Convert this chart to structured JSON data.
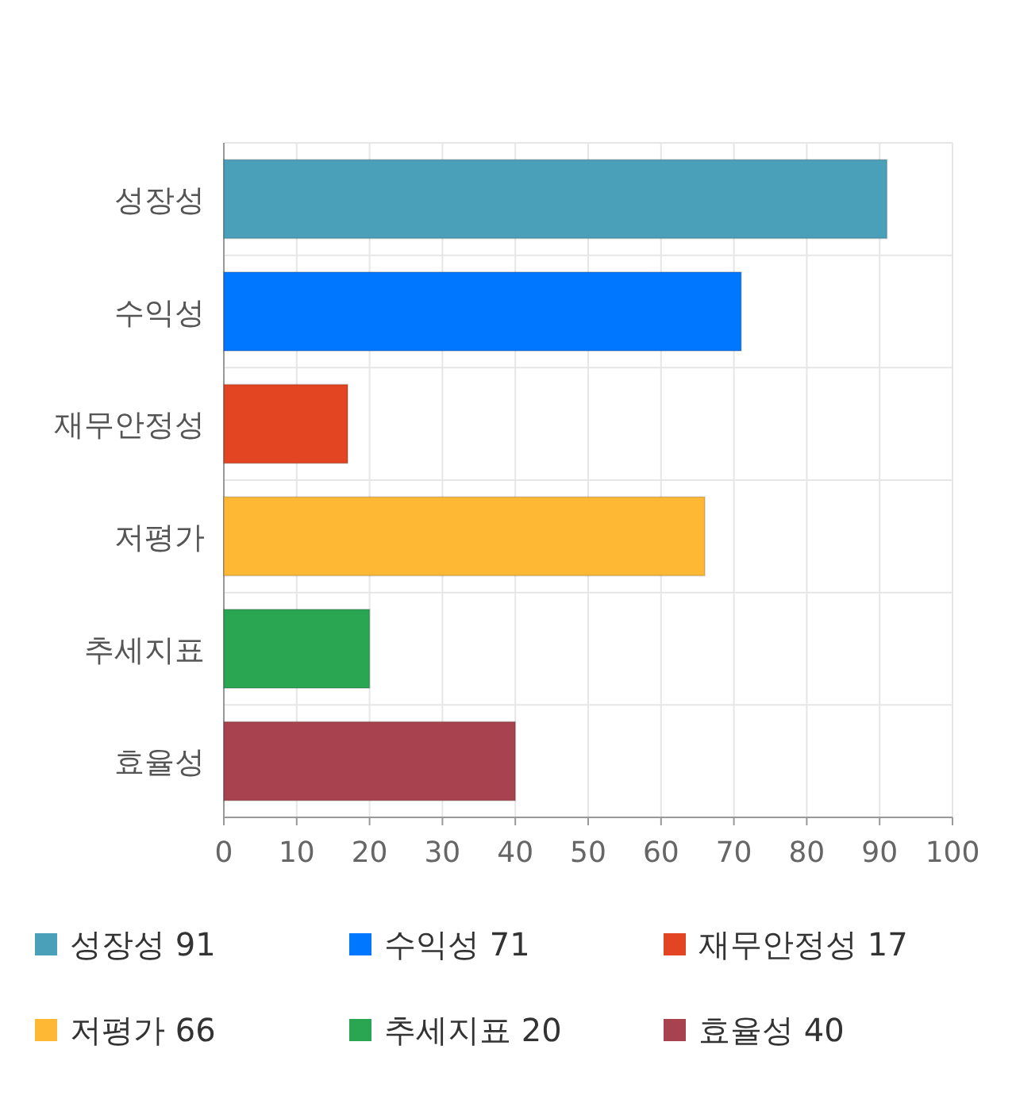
{
  "chart_data": {
    "type": "bar",
    "orientation": "horizontal",
    "categories": [
      "성장성",
      "수익성",
      "재무안정성",
      "저평가",
      "추세지표",
      "효율성"
    ],
    "series": [
      {
        "name": "성장성 91",
        "color": "#4aa0b8",
        "values": [
          91,
          null,
          null,
          null,
          null,
          null
        ]
      },
      {
        "name": "수익성 71",
        "color": "#0077ff",
        "values": [
          null,
          71,
          null,
          null,
          null,
          null
        ]
      },
      {
        "name": "재무안정성 17",
        "color": "#e34523",
        "values": [
          null,
          null,
          17,
          null,
          null,
          null
        ]
      },
      {
        "name": "저평가 66",
        "color": "#ffb833",
        "values": [
          null,
          null,
          null,
          66,
          null,
          null
        ]
      },
      {
        "name": "추세지표 20",
        "color": "#2aa653",
        "values": [
          null,
          null,
          null,
          null,
          20,
          null
        ]
      },
      {
        "name": "효율성 40",
        "color": "#a8424f",
        "values": [
          null,
          null,
          null,
          null,
          null,
          40
        ]
      }
    ],
    "xlim": [
      0,
      100
    ],
    "xticks": [
      0,
      10,
      20,
      30,
      40,
      50,
      60,
      70,
      80,
      90,
      100
    ],
    "grid": true,
    "legend": "bottom"
  }
}
